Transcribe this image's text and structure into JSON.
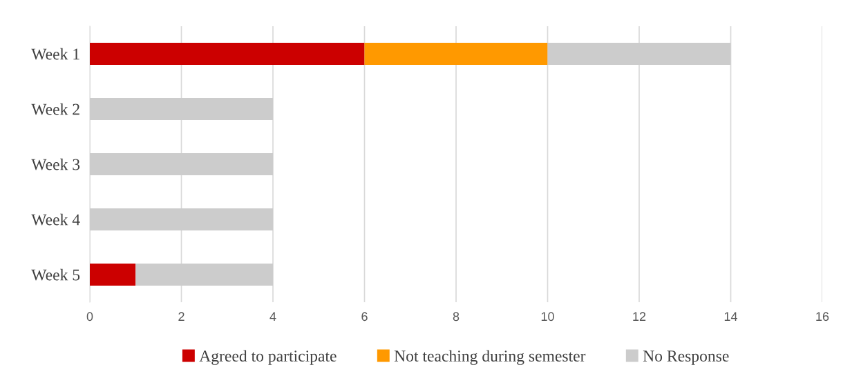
{
  "chart_data": {
    "type": "bar",
    "orientation": "horizontal",
    "stacked": true,
    "categories": [
      "Week 1",
      "Week 2",
      "Week 3",
      "Week 4",
      "Week 5"
    ],
    "series": [
      {
        "name": "Agreed to participate",
        "color": "#cc0000",
        "values": [
          6,
          0,
          0,
          0,
          1
        ]
      },
      {
        "name": "Not teaching during semester",
        "color": "#ff9900",
        "values": [
          4,
          0,
          0,
          0,
          0
        ]
      },
      {
        "name": "No Response",
        "color": "#cccccc",
        "values": [
          4,
          4,
          4,
          4,
          3
        ]
      }
    ],
    "xlim": [
      0,
      16
    ],
    "xticks": [
      0,
      2,
      4,
      6,
      8,
      10,
      12,
      14,
      16
    ],
    "grid": "x",
    "legend": "bottom"
  }
}
